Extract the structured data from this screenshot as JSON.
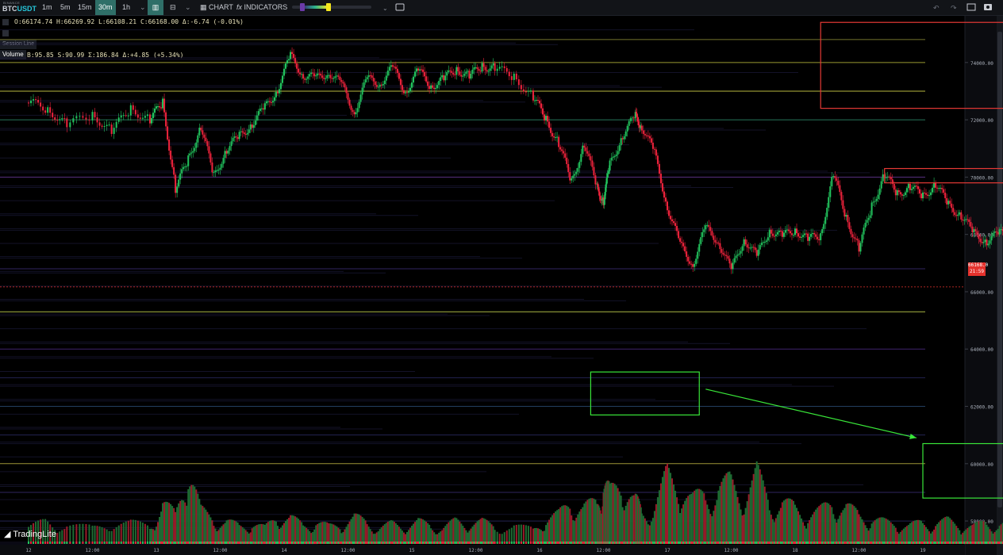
{
  "header": {
    "exchange": "BINANCE",
    "symbol_base": "BTC",
    "symbol_quote": "USDT",
    "timeframes": [
      {
        "label": "1m",
        "active": false
      },
      {
        "label": "5m",
        "active": false
      },
      {
        "label": "15m",
        "active": false
      },
      {
        "label": "30m",
        "active": true
      },
      {
        "label": "1h",
        "active": false
      }
    ],
    "chart_label": "CHART",
    "indicators_label": "INDICATORS"
  },
  "legend": {
    "ohlc": "O:66174.74 H:66269.92 L:66108.21 C:66168.00 Δ:-6.74 (-0.01%)",
    "session_line": "Session Line",
    "volume_label": "Volume",
    "volume_values": "B:95.85 S:90.99 Σ:186.84 Δ:+4.85 (+5.34%)"
  },
  "price_tag": {
    "line1": "66168.0",
    "line2": "21:59"
  },
  "brand": "TradingLite",
  "colors": {
    "up": "#22c55e",
    "down": "#ef233c",
    "annotation_red": "#e53935",
    "annotation_green": "#39e639",
    "background": "#000000"
  },
  "chart_data": {
    "type": "candlestick",
    "symbol": "BTCUSDT",
    "interval": "30m",
    "y_ticks": [
      58000,
      60000,
      62000,
      64000,
      66000,
      68000,
      70000,
      72000,
      74000
    ],
    "y_tick_labels": [
      "58000.00",
      "60000.00",
      "62000.00",
      "64000.00",
      "66000.00",
      "68000.00",
      "70000.00",
      "72000.00",
      "74000.00"
    ],
    "ylim": [
      57200,
      75600
    ],
    "x_ticks": [
      "12",
      "12:00",
      "13",
      "12:00",
      "14",
      "12:00",
      "15",
      "12:00",
      "16",
      "12:00",
      "17",
      "12:00",
      "18",
      "12:00",
      "19"
    ],
    "last_price": 66168.0,
    "price_path": [
      [
        0,
        72600
      ],
      [
        0.3,
        72400
      ],
      [
        0.6,
        71800
      ],
      [
        1.0,
        72200
      ],
      [
        1.3,
        71600
      ],
      [
        1.6,
        72400
      ],
      [
        1.9,
        72000
      ],
      [
        2.1,
        72600
      ],
      [
        2.3,
        69600
      ],
      [
        2.5,
        70600
      ],
      [
        2.7,
        71800
      ],
      [
        2.9,
        70000
      ],
      [
        3.1,
        71000
      ],
      [
        3.3,
        71400
      ],
      [
        3.5,
        71900
      ],
      [
        3.7,
        72400
      ],
      [
        3.9,
        73100
      ],
      [
        4.1,
        74200
      ],
      [
        4.3,
        73600
      ],
      [
        4.5,
        73400
      ],
      [
        4.7,
        73700
      ],
      [
        4.9,
        73200
      ],
      [
        5.1,
        72300
      ],
      [
        5.3,
        73400
      ],
      [
        5.5,
        73300
      ],
      [
        5.7,
        73800
      ],
      [
        5.9,
        73000
      ],
      [
        6.1,
        73700
      ],
      [
        6.3,
        73200
      ],
      [
        6.5,
        73400
      ],
      [
        6.7,
        73800
      ],
      [
        6.9,
        73500
      ],
      [
        7.1,
        73900
      ],
      [
        7.3,
        73800
      ],
      [
        7.6,
        73500
      ],
      [
        7.9,
        72800
      ],
      [
        8.1,
        72000
      ],
      [
        8.3,
        71200
      ],
      [
        8.5,
        69800
      ],
      [
        8.7,
        71200
      ],
      [
        8.9,
        69600
      ],
      [
        9.0,
        69200
      ],
      [
        9.1,
        70400
      ],
      [
        9.3,
        71500
      ],
      [
        9.5,
        72100
      ],
      [
        9.6,
        71800
      ],
      [
        9.8,
        70800
      ],
      [
        10.0,
        69000
      ],
      [
        10.2,
        67600
      ],
      [
        10.4,
        67000
      ],
      [
        10.6,
        68200
      ],
      [
        10.8,
        67800
      ],
      [
        11.0,
        66700
      ],
      [
        11.2,
        67900
      ],
      [
        11.4,
        67200
      ],
      [
        11.6,
        68200
      ],
      [
        11.8,
        67900
      ],
      [
        12.0,
        68200
      ],
      [
        12.2,
        67800
      ],
      [
        12.4,
        68000
      ],
      [
        12.6,
        70100
      ],
      [
        12.8,
        68600
      ],
      [
        13.0,
        67500
      ],
      [
        13.2,
        69000
      ],
      [
        13.4,
        70100
      ],
      [
        13.6,
        69400
      ],
      [
        13.8,
        69700
      ],
      [
        14.0,
        69300
      ],
      [
        14.2,
        69800
      ],
      [
        14.4,
        69000
      ],
      [
        14.6,
        68700
      ],
      [
        14.8,
        68000
      ],
      [
        15.0,
        67800
      ],
      [
        15.2,
        68000
      ],
      [
        15.4,
        68200
      ],
      [
        15.6,
        67800
      ],
      [
        15.8,
        67000
      ],
      [
        16.0,
        66800
      ],
      [
        16.1,
        66500
      ],
      [
        16.3,
        66100
      ],
      [
        16.4,
        65700
      ],
      [
        16.5,
        65600
      ],
      [
        16.6,
        66200
      ],
      [
        16.7,
        66168
      ]
    ],
    "volume_series": [
      [
        0,
        20
      ],
      [
        0.3,
        35
      ],
      [
        0.6,
        25
      ],
      [
        1.0,
        22
      ],
      [
        1.3,
        30
      ],
      [
        1.6,
        28
      ],
      [
        1.9,
        26
      ],
      [
        2.1,
        55
      ],
      [
        2.3,
        40
      ],
      [
        2.5,
        110
      ],
      [
        2.7,
        45
      ],
      [
        2.9,
        35
      ],
      [
        3.1,
        30
      ],
      [
        3.3,
        25
      ],
      [
        3.5,
        28
      ],
      [
        3.7,
        22
      ],
      [
        3.9,
        40
      ],
      [
        4.1,
        35
      ],
      [
        4.3,
        26
      ],
      [
        4.5,
        30
      ],
      [
        4.7,
        24
      ],
      [
        4.9,
        28
      ],
      [
        5.1,
        36
      ],
      [
        5.3,
        30
      ],
      [
        5.5,
        22
      ],
      [
        5.7,
        28
      ],
      [
        5.9,
        24
      ],
      [
        6.1,
        30
      ],
      [
        6.3,
        26
      ],
      [
        6.5,
        22
      ],
      [
        6.7,
        32
      ],
      [
        6.9,
        28
      ],
      [
        7.1,
        30
      ],
      [
        7.3,
        26
      ],
      [
        7.6,
        24
      ],
      [
        7.9,
        20
      ],
      [
        8.1,
        35
      ],
      [
        8.3,
        40
      ],
      [
        8.5,
        60
      ],
      [
        8.7,
        50
      ],
      [
        8.9,
        55
      ],
      [
        9.0,
        85
      ],
      [
        9.1,
        70
      ],
      [
        9.3,
        90
      ],
      [
        9.5,
        60
      ],
      [
        9.6,
        45
      ],
      [
        9.8,
        50
      ],
      [
        10.0,
        95
      ],
      [
        10.2,
        80
      ],
      [
        10.4,
        60
      ],
      [
        10.6,
        70
      ],
      [
        10.8,
        75
      ],
      [
        11.0,
        85
      ],
      [
        11.2,
        65
      ],
      [
        11.4,
        95
      ],
      [
        11.6,
        60
      ],
      [
        11.8,
        55
      ],
      [
        12.0,
        50
      ],
      [
        12.2,
        40
      ],
      [
        12.4,
        45
      ],
      [
        12.6,
        60
      ],
      [
        12.8,
        50
      ],
      [
        13.0,
        40
      ],
      [
        13.2,
        35
      ],
      [
        13.4,
        30
      ],
      [
        13.6,
        28
      ],
      [
        13.8,
        25
      ],
      [
        14.0,
        30
      ],
      [
        14.2,
        28
      ],
      [
        14.4,
        32
      ],
      [
        14.6,
        26
      ],
      [
        14.8,
        24
      ],
      [
        15.0,
        30
      ],
      [
        15.2,
        26
      ],
      [
        15.4,
        28
      ],
      [
        15.6,
        30
      ],
      [
        15.8,
        35
      ],
      [
        16.0,
        40
      ],
      [
        16.1,
        45
      ],
      [
        16.3,
        50
      ],
      [
        16.4,
        90
      ],
      [
        16.5,
        70
      ],
      [
        16.6,
        45
      ],
      [
        16.7,
        30
      ]
    ],
    "volume_ylim": [
      0,
      120
    ],
    "heatmap_levels": [
      {
        "price": 74800,
        "color": "#8a8a35"
      },
      {
        "price": 74000,
        "color": "#b4b43a"
      },
      {
        "price": 73000,
        "color": "#d8d84a"
      },
      {
        "price": 72000,
        "color": "#2e8a6a"
      },
      {
        "price": 70000,
        "color": "#6a3a9a"
      },
      {
        "price": 66800,
        "color": "#3a2a70"
      },
      {
        "price": 65300,
        "color": "#c8d850"
      },
      {
        "price": 64000,
        "color": "#4a2a80"
      },
      {
        "price": 63000,
        "color": "#2a2a60"
      },
      {
        "price": 62000,
        "color": "#2a4a70"
      },
      {
        "price": 61000,
        "color": "#2a2a60"
      },
      {
        "price": 60000,
        "color": "#b8b040"
      },
      {
        "price": 59000,
        "color": "#3a2a70"
      },
      {
        "price": 58000,
        "color": "#2a2a60"
      }
    ],
    "annotations": [
      {
        "kind": "box",
        "color": "red",
        "x0": 12.4,
        "x1": 18.0,
        "y0": 72400,
        "y1": 75400
      },
      {
        "kind": "box",
        "color": "red",
        "x0": 13.4,
        "x1": 18.0,
        "y0": 69800,
        "y1": 70300
      },
      {
        "kind": "box",
        "color": "green",
        "x0": 8.8,
        "x1": 10.5,
        "y0": 61700,
        "y1": 63200
      },
      {
        "kind": "box",
        "color": "green",
        "x0": 14.0,
        "x1": 18.0,
        "y0": 58800,
        "y1": 60700
      },
      {
        "kind": "ellipse",
        "color": "green",
        "x": 16.45,
        "y": 65250
      },
      {
        "kind": "arrow",
        "color": "green",
        "from": [
          10.6,
          62600
        ],
        "to": [
          13.9,
          60900
        ]
      }
    ]
  }
}
